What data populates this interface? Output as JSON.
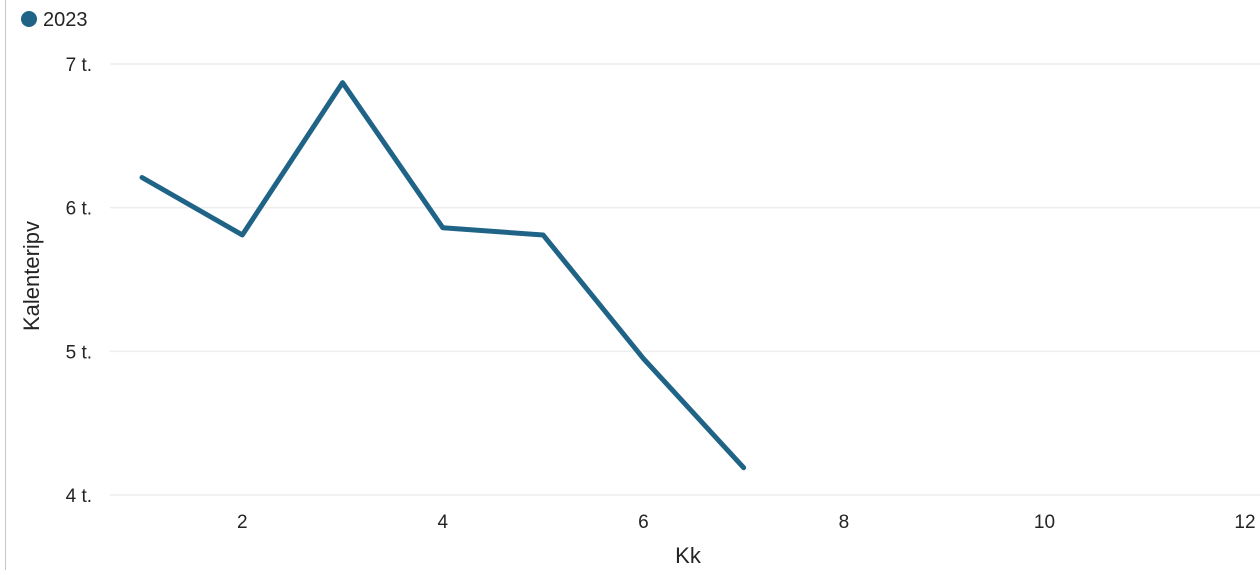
{
  "chart_data": {
    "type": "line",
    "legend": {
      "placement": "top-left",
      "entries": [
        {
          "name": "2023",
          "color": "#1f6487"
        }
      ]
    },
    "xlabel": "Kk",
    "ylabel": "Kalenteripv",
    "xlim": [
      0.9,
      12
    ],
    "ylim": [
      4,
      7
    ],
    "x_ticks": [
      {
        "value": 2,
        "label": "2"
      },
      {
        "value": 4,
        "label": "4"
      },
      {
        "value": 6,
        "label": "6"
      },
      {
        "value": 8,
        "label": "8"
      },
      {
        "value": 10,
        "label": "10"
      },
      {
        "value": 12,
        "label": "12"
      }
    ],
    "y_ticks": [
      {
        "value": 4,
        "label": "4 t."
      },
      {
        "value": 5,
        "label": "5 t."
      },
      {
        "value": 6,
        "label": "6 t."
      },
      {
        "value": 7,
        "label": "7 t."
      }
    ],
    "grid": {
      "horizontal": true,
      "vertical": false,
      "color": "#eeeeee"
    },
    "series": [
      {
        "name": "2023",
        "color": "#1f6487",
        "x": [
          1,
          2,
          3,
          4,
          5,
          6,
          7
        ],
        "values": [
          6.21,
          5.81,
          6.87,
          5.86,
          5.81,
          4.95,
          4.19
        ]
      }
    ]
  }
}
